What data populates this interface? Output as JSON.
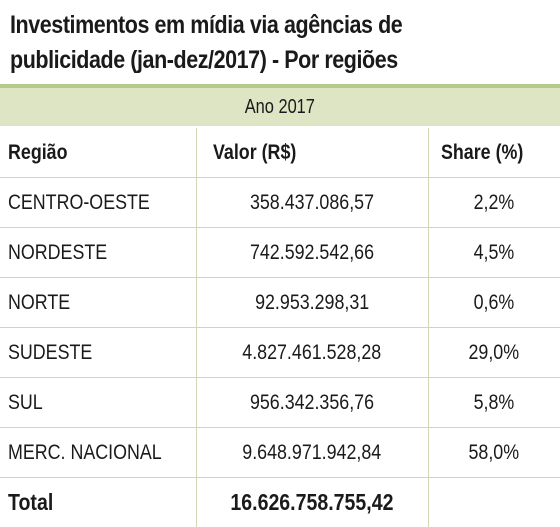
{
  "title_line1": "Investimentos em mídia via agências de",
  "title_line2": "publicidade (jan-dez/2017) - Por regiões",
  "year_label": "Ano 2017",
  "headers": {
    "region": "Região",
    "value": "Valor (R$)",
    "share": "Share (%)"
  },
  "rows": [
    {
      "region": "CENTRO-OESTE",
      "value": "358.437.086,57",
      "share": "2,2%"
    },
    {
      "region": "NORDESTE",
      "value": "742.592.542,66",
      "share": "4,5%"
    },
    {
      "region": "NORTE",
      "value": "92.953.298,31",
      "share": "0,6%"
    },
    {
      "region": "SUDESTE",
      "value": "4.827.461.528,28",
      "share": "29,0%"
    },
    {
      "region": "SUL",
      "value": "956.342.356,76",
      "share": "5,8%"
    },
    {
      "region": "MERC. NACIONAL",
      "value": "9.648.971.942,84",
      "share": "58,0%"
    }
  ],
  "total": {
    "label": "Total",
    "value": "16.626.758.755,42"
  },
  "colors": {
    "accent_line": "#b5c98a",
    "band": "#dde5c4",
    "grid": "#cfd8b3"
  }
}
